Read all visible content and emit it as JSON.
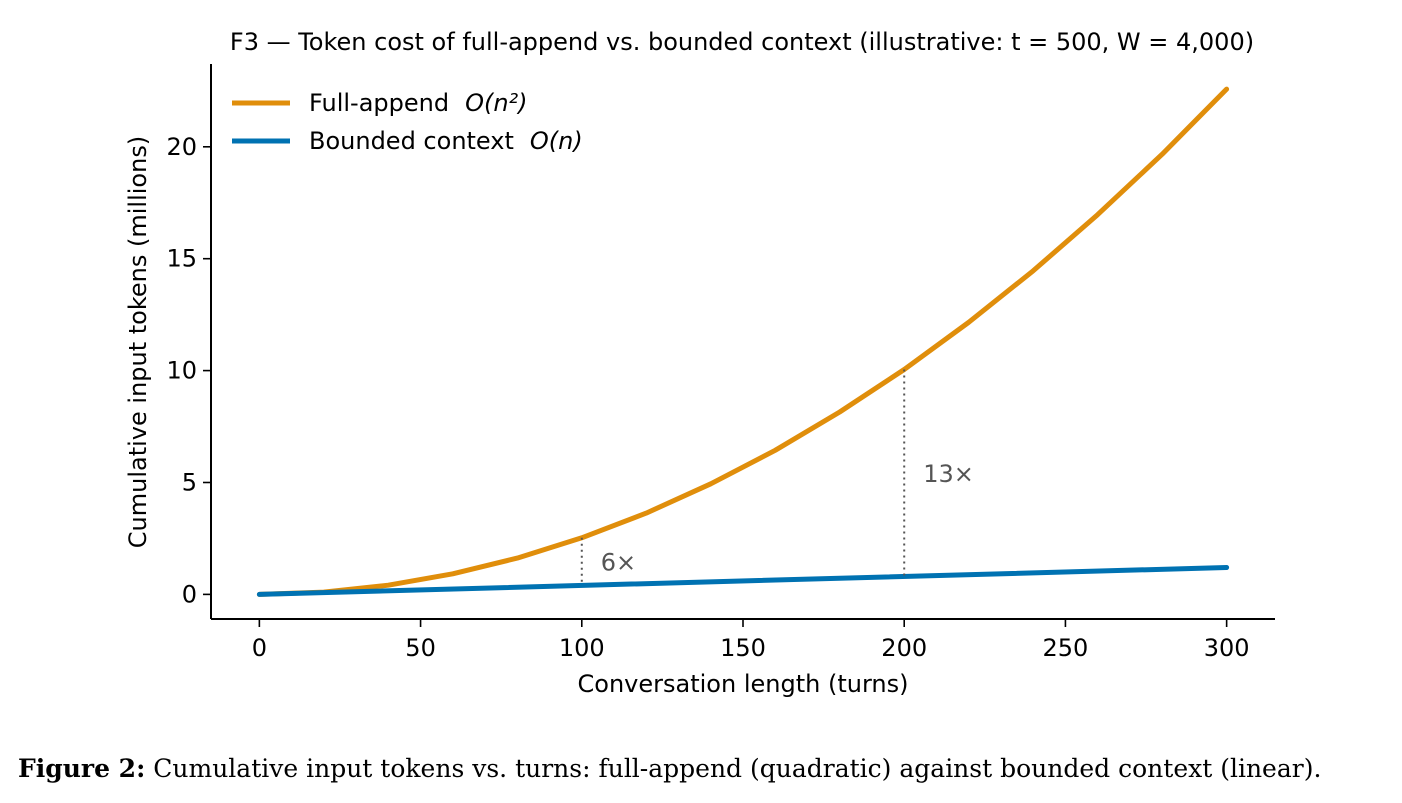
{
  "chart_data": {
    "type": "line",
    "title": "F3 — Token cost of full-append vs. bounded context (illustrative: t = 500, W = 4,000)",
    "xlabel": "Conversation length (turns)",
    "ylabel": "Cumulative input tokens (millions)",
    "xlim": [
      -15,
      315
    ],
    "ylim": [
      -1.1,
      23.7
    ],
    "x_ticks": [
      0,
      50,
      100,
      150,
      200,
      250,
      300
    ],
    "y_ticks": [
      0,
      5,
      10,
      15,
      20
    ],
    "grid": false,
    "legend_position": "top-left",
    "series": [
      {
        "name": "Full-append",
        "name_complexity": "O(n²)",
        "color": "#E08E0B",
        "x": [
          0,
          20,
          40,
          60,
          80,
          100,
          120,
          140,
          160,
          180,
          200,
          220,
          240,
          260,
          280,
          300
        ],
        "y": [
          0,
          0.1,
          0.41,
          0.92,
          1.62,
          2.53,
          3.63,
          4.94,
          6.44,
          8.15,
          10.05,
          12.16,
          14.46,
          16.97,
          19.67,
          22.58
        ]
      },
      {
        "name": "Bounded context",
        "name_complexity": "O(n)",
        "color": "#0072B2",
        "x": [
          0,
          300
        ],
        "y": [
          0,
          1.2
        ]
      }
    ],
    "annotations": [
      {
        "x": 100,
        "y_top": 2.53,
        "y_bottom": 0.4,
        "label": "6×"
      },
      {
        "x": 200,
        "y_top": 10.05,
        "y_bottom": 0.8,
        "label": "13×"
      }
    ]
  },
  "caption": {
    "label": "Figure 2:",
    "text": " Cumulative input tokens vs. turns: full-append (quadratic) against bounded context (linear)."
  }
}
